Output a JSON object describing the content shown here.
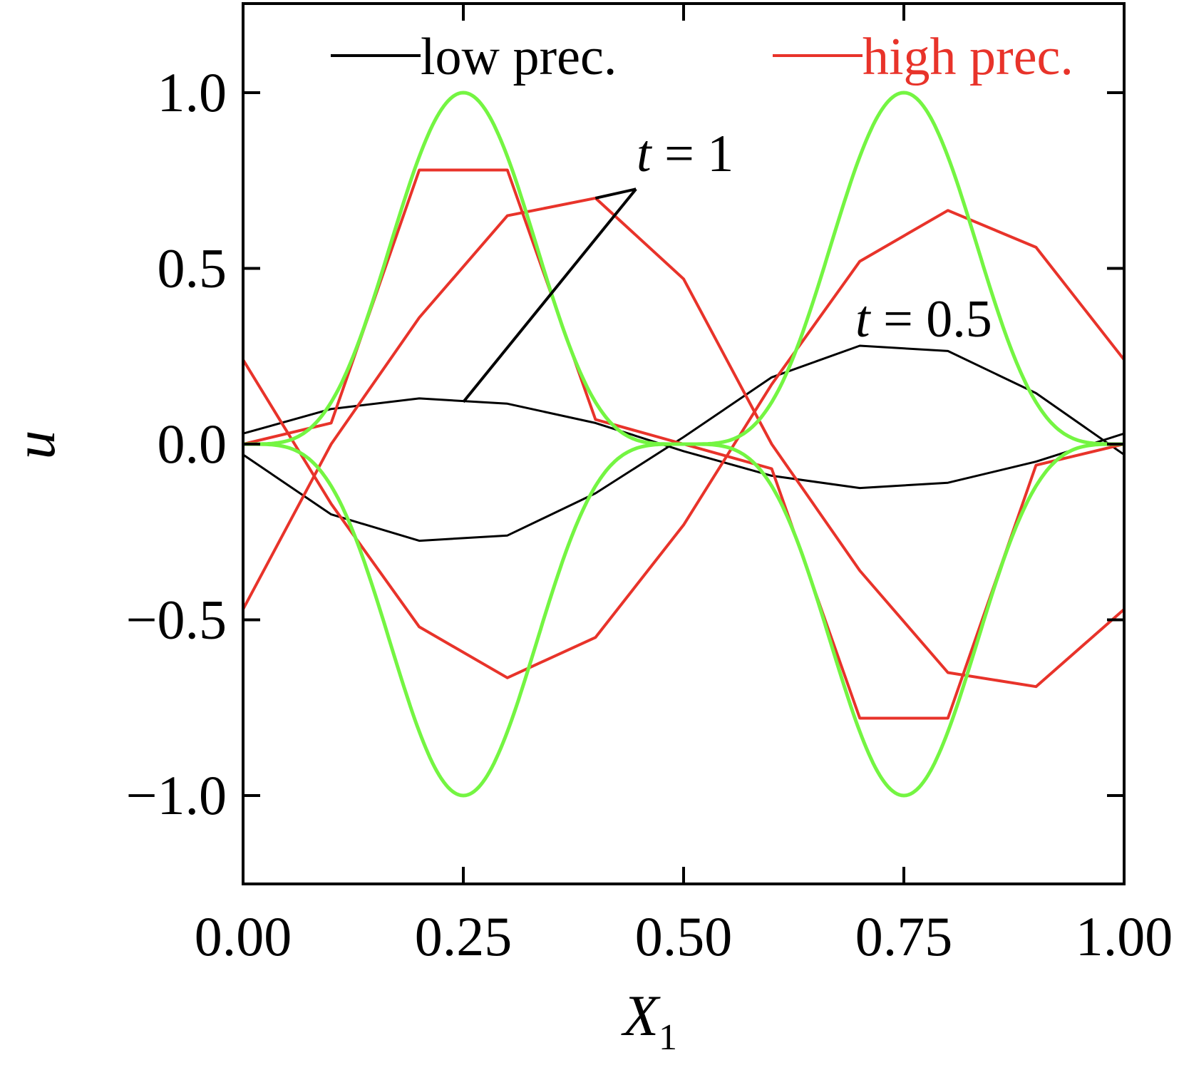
{
  "chart_data": {
    "type": "line",
    "xlabel": "X",
    "xlabel_subscript": "1",
    "ylabel": "u",
    "xlim": [
      0,
      1
    ],
    "ylim": [
      -1.25,
      1.25
    ],
    "xticks": [
      0,
      0.25,
      0.5,
      0.75,
      1
    ],
    "xtick_labels": [
      "0.00",
      "0.25",
      "0.50",
      "0.75",
      "1.00"
    ],
    "yticks": [
      -1,
      -0.5,
      0,
      0.5,
      1
    ],
    "ytick_labels": [
      "−1.0",
      "−0.5",
      "0.0",
      "0.5",
      "1.0"
    ],
    "legend": {
      "placement": "top",
      "entries": [
        {
          "label": "low prec.",
          "color": "#000000"
        },
        {
          "label": "high prec.",
          "color": "#e8332a"
        }
      ]
    },
    "annotations": [
      {
        "var": "t",
        "rest": " = 1",
        "points_to": [
          [
            0.25,
            0.12
          ],
          [
            0.4,
            0.7
          ]
        ],
        "anchor": [
          0.45,
          0.75
        ]
      },
      {
        "var": "t",
        "rest": " = 0.5",
        "points_to": [],
        "anchor": [
          0.7,
          0.27
        ]
      }
    ],
    "series": [
      {
        "group": "low prec.",
        "color": "#000000",
        "width": 3,
        "x": [
          0,
          0.1,
          0.2,
          0.3,
          0.4,
          0.5,
          0.6,
          0.7,
          0.8,
          0.9,
          1.0
        ],
        "y": [
          0.03,
          0.1,
          0.13,
          0.115,
          0.06,
          -0.02,
          -0.09,
          -0.125,
          -0.11,
          -0.05,
          0.03
        ]
      },
      {
        "group": "low prec.",
        "color": "#000000",
        "width": 3,
        "x": [
          0,
          0.1,
          0.2,
          0.3,
          0.4,
          0.5,
          0.6,
          0.7,
          0.8,
          0.9,
          1.0
        ],
        "y": [
          -0.03,
          -0.2,
          -0.275,
          -0.26,
          -0.14,
          0.02,
          0.19,
          0.28,
          0.265,
          0.145,
          -0.03
        ]
      },
      {
        "group": "high prec.",
        "color": "#e8332a",
        "width": 4,
        "x": [
          0,
          0.1,
          0.2,
          0.3,
          0.4,
          0.5,
          0.6,
          0.7,
          0.8,
          0.9,
          1.0
        ],
        "y": [
          0.0,
          0.06,
          0.78,
          0.78,
          0.07,
          0.0,
          -0.07,
          -0.78,
          -0.78,
          -0.06,
          0.0
        ]
      },
      {
        "group": "high prec.",
        "color": "#e8332a",
        "width": 4,
        "x": [
          0,
          0.1,
          0.2,
          0.3,
          0.4,
          0.5,
          0.6,
          0.7,
          0.8,
          0.9,
          1.0
        ],
        "y": [
          -0.47,
          0.0,
          0.36,
          0.65,
          0.7,
          0.47,
          0.0,
          -0.36,
          -0.65,
          -0.69,
          -0.47
        ]
      },
      {
        "group": "high prec.",
        "color": "#e8332a",
        "width": 4,
        "x": [
          0,
          0.1,
          0.2,
          0.3,
          0.4,
          0.5,
          0.6,
          0.7,
          0.8,
          0.9,
          1.0
        ],
        "y": [
          0.24,
          -0.17,
          -0.52,
          -0.665,
          -0.55,
          -0.23,
          0.17,
          0.52,
          0.665,
          0.56,
          0.24
        ]
      },
      {
        "group": "reference",
        "color": "#74f542",
        "width": 5,
        "function": "sin4",
        "sign": 1
      },
      {
        "group": "reference",
        "color": "#74f542",
        "width": 5,
        "function": "sin4",
        "sign": -1
      }
    ]
  }
}
